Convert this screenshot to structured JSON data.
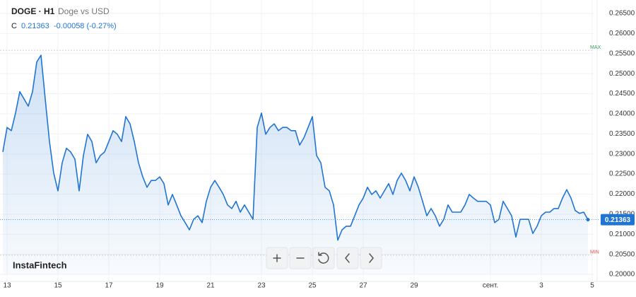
{
  "header": {
    "symbol": "DOGE · H1",
    "name": "Doge vs USD",
    "close_label": "C",
    "close": "0.21363",
    "change": "-0.00058 (-0.27%)"
  },
  "brand": "InstaFintech",
  "chart_data": {
    "type": "area",
    "color": "#1f74d4",
    "grid": true,
    "ylim": [
      0.2,
      0.265
    ],
    "yticks": [
      {
        "value": 0.2,
        "label": "0.20000"
      },
      {
        "value": 0.205,
        "label": "0.20500"
      },
      {
        "value": 0.21,
        "label": "0.21000"
      },
      {
        "value": 0.215,
        "label": "0.21500"
      },
      {
        "value": 0.22,
        "label": "0.22000"
      },
      {
        "value": 0.225,
        "label": "0.22500"
      },
      {
        "value": 0.23,
        "label": "0.23000"
      },
      {
        "value": 0.235,
        "label": "0.23500"
      },
      {
        "value": 0.24,
        "label": "0.24000"
      },
      {
        "value": 0.245,
        "label": "0.24500"
      },
      {
        "value": 0.25,
        "label": "0.25000"
      },
      {
        "value": 0.255,
        "label": "0.25500"
      },
      {
        "value": 0.26,
        "label": "0.26000"
      },
      {
        "value": 0.265,
        "label": "0.26500"
      }
    ],
    "last_value": 0.21363,
    "max_line": {
      "label": "MAX",
      "value": 0.2558
    },
    "min_line": {
      "label": "MIN",
      "value": 0.2048
    },
    "categories": [
      null,
      "13",
      null,
      null,
      null,
      null,
      null,
      null,
      null,
      null,
      null,
      null,
      null,
      "15",
      null,
      null,
      null,
      null,
      null,
      null,
      null,
      null,
      null,
      null,
      null,
      "17",
      null,
      null,
      null,
      null,
      null,
      null,
      null,
      null,
      null,
      null,
      null,
      "19",
      null,
      null,
      null,
      null,
      null,
      null,
      null,
      null,
      null,
      null,
      null,
      "21",
      null,
      null,
      null,
      null,
      null,
      null,
      null,
      null,
      null,
      null,
      null,
      "23",
      null,
      null,
      null,
      null,
      null,
      null,
      null,
      null,
      null,
      null,
      null,
      "25",
      null,
      null,
      null,
      null,
      null,
      null,
      null,
      null,
      null,
      null,
      null,
      "27",
      null,
      null,
      null,
      null,
      null,
      null,
      null,
      null,
      null,
      null,
      null,
      "29",
      null,
      null,
      null,
      null,
      null,
      null,
      null,
      null,
      null,
      null,
      null,
      null,
      null,
      null,
      null,
      null,
      null,
      "сент.",
      null,
      null,
      null,
      null,
      null,
      null,
      null,
      null,
      null,
      null,
      null,
      "3",
      null,
      null,
      null,
      null,
      null,
      null,
      null,
      null,
      null,
      null,
      null,
      "5"
    ],
    "values": [
      0.2305,
      0.2366,
      0.2358,
      0.2402,
      0.2455,
      0.2437,
      0.2419,
      0.2455,
      0.2529,
      0.2546,
      0.2437,
      0.2331,
      0.2252,
      0.2208,
      0.2278,
      0.2314,
      0.2305,
      0.2287,
      0.2208,
      0.2296,
      0.2349,
      0.2331,
      0.2278,
      0.2296,
      0.2305,
      0.2331,
      0.2358,
      0.2349,
      0.2331,
      0.2393,
      0.2375,
      0.2331,
      0.2278,
      0.2243,
      0.2217,
      0.2234,
      0.2234,
      0.2243,
      0.2226,
      0.2173,
      0.2199,
      0.2173,
      0.2146,
      0.2129,
      0.2111,
      0.2137,
      0.2146,
      0.2129,
      0.2182,
      0.2217,
      0.2234,
      0.2217,
      0.2199,
      0.2173,
      0.2164,
      0.2182,
      0.2155,
      0.2173,
      0.2155,
      0.2137,
      0.2366,
      0.2402,
      0.2349,
      0.2366,
      0.2375,
      0.2358,
      0.2366,
      0.2366,
      0.2358,
      0.2358,
      0.2322,
      0.234,
      0.2366,
      0.2393,
      0.2296,
      0.2278,
      0.2217,
      0.2208,
      0.2173,
      0.2085,
      0.2111,
      0.212,
      0.212,
      0.2146,
      0.2173,
      0.219,
      0.2217,
      0.2199,
      0.2208,
      0.219,
      0.2208,
      0.2226,
      0.2199,
      0.2234,
      0.2252,
      0.2234,
      0.2208,
      0.2243,
      0.2217,
      0.2182,
      0.2146,
      0.2164,
      0.2146,
      0.212,
      0.2137,
      0.2173,
      0.2155,
      0.2155,
      0.2155,
      0.2173,
      0.2199,
      0.219,
      0.2182,
      0.2182,
      0.2182,
      0.2173,
      0.2129,
      0.2137,
      0.2182,
      0.2164,
      0.2146,
      0.2093,
      0.2137,
      0.2137,
      0.2137,
      0.2102,
      0.212,
      0.2146,
      0.2155,
      0.2155,
      0.2164,
      0.2164,
      0.219,
      0.2211,
      0.219,
      0.2159,
      0.2152,
      0.2155,
      0.21363,
      null
    ]
  }
}
